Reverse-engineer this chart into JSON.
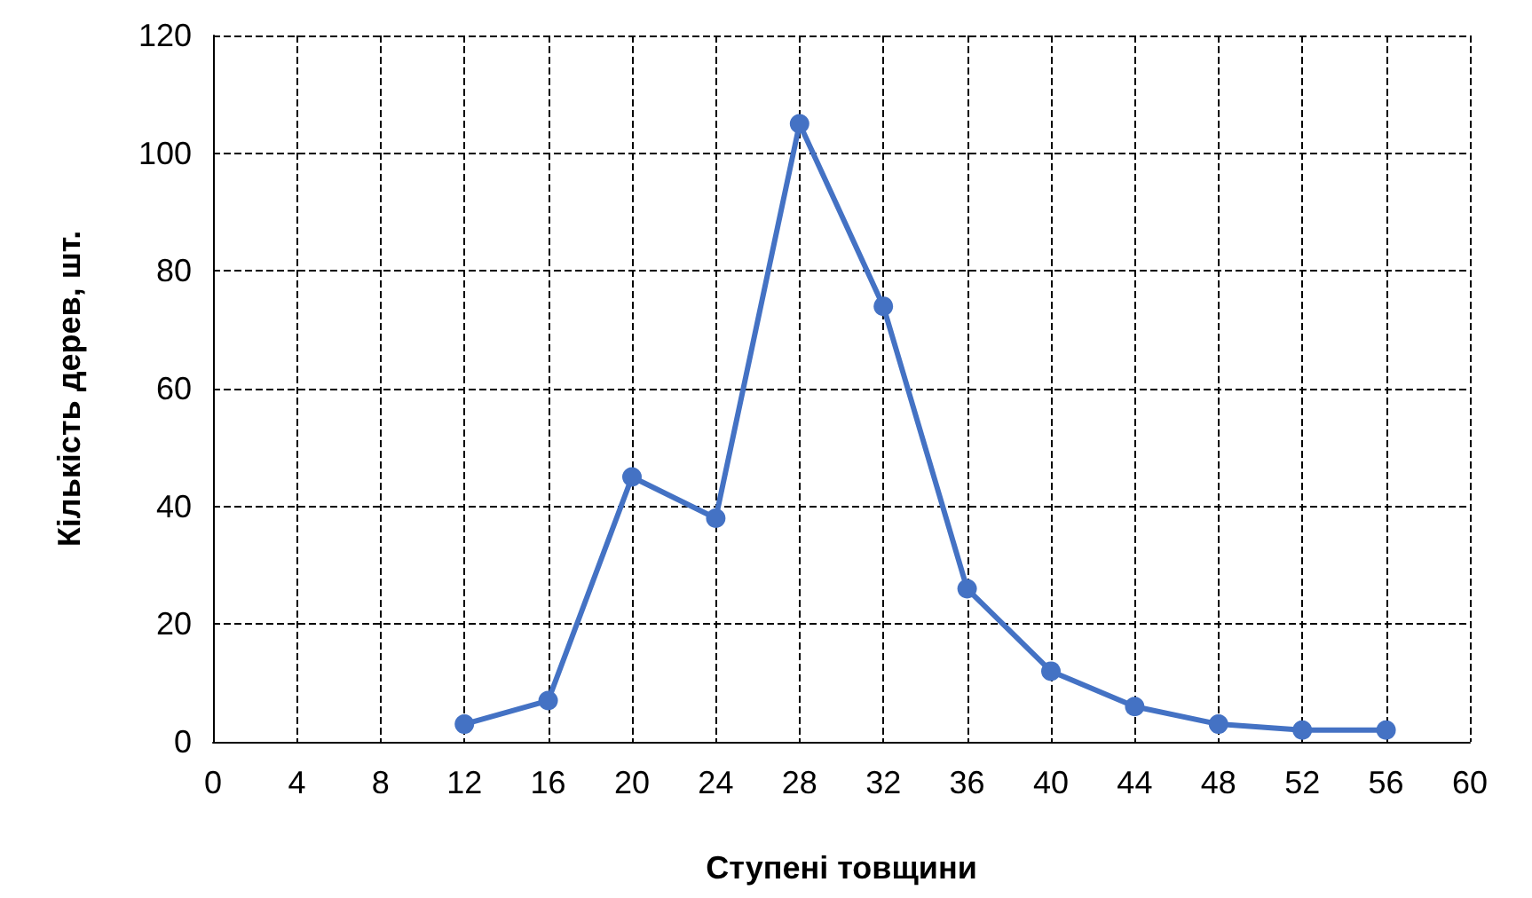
{
  "chart_data": {
    "type": "line",
    "xlabel": "Ступені товщини",
    "ylabel": "Кількість дерев, шт.",
    "x": [
      12,
      16,
      20,
      24,
      28,
      32,
      36,
      40,
      44,
      48,
      52,
      56
    ],
    "series": [
      {
        "color": "#4472c4",
        "values": [
          3,
          7,
          45,
          38,
          105,
          74,
          26,
          12,
          6,
          3,
          2,
          2
        ]
      }
    ],
    "xlim": [
      0,
      60
    ],
    "xticks": [
      0,
      4,
      8,
      12,
      16,
      20,
      24,
      28,
      32,
      36,
      40,
      44,
      48,
      52,
      56,
      60
    ],
    "ylim": [
      0,
      120
    ],
    "yticks": [
      0,
      20,
      40,
      60,
      80,
      100,
      120
    ],
    "grid": true,
    "marker": "circle",
    "line_style": "solid"
  }
}
